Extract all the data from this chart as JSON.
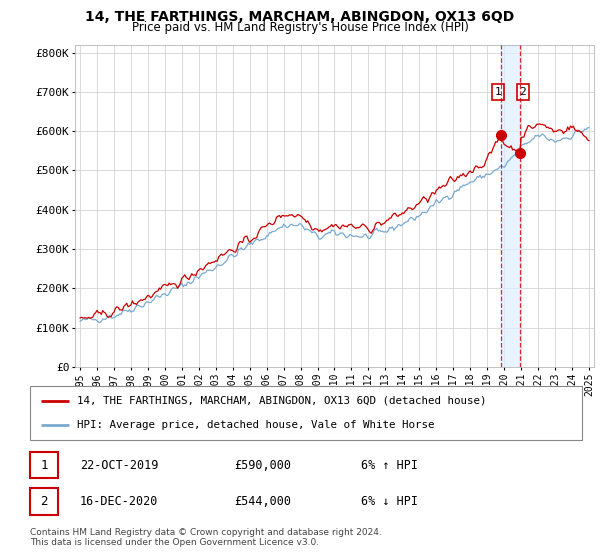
{
  "title": "14, THE FARTHINGS, MARCHAM, ABINGDON, OX13 6QD",
  "subtitle": "Price paid vs. HM Land Registry's House Price Index (HPI)",
  "legend_line1": "14, THE FARTHINGS, MARCHAM, ABINGDON, OX13 6QD (detached house)",
  "legend_line2": "HPI: Average price, detached house, Vale of White Horse",
  "footnote": "Contains HM Land Registry data © Crown copyright and database right 2024.\nThis data is licensed under the Open Government Licence v3.0.",
  "annotation1_date": "22-OCT-2019",
  "annotation1_price": "£590,000",
  "annotation1_hpi": "6% ↑ HPI",
  "annotation2_date": "16-DEC-2020",
  "annotation2_price": "£544,000",
  "annotation2_hpi": "6% ↓ HPI",
  "sale1_x": 2019.81,
  "sale1_y": 590000,
  "sale2_x": 2020.96,
  "sale2_y": 544000,
  "vline1_x": 2019.81,
  "vline2_x": 2020.96,
  "ylim": [
    0,
    820000
  ],
  "xlim": [
    1994.7,
    2025.3
  ],
  "yticks": [
    0,
    100000,
    200000,
    300000,
    400000,
    500000,
    600000,
    700000,
    800000
  ],
  "ytick_labels": [
    "£0",
    "£100K",
    "£200K",
    "£300K",
    "£400K",
    "£500K",
    "£600K",
    "£700K",
    "£800K"
  ],
  "xticks": [
    1995,
    1996,
    1997,
    1998,
    1999,
    2000,
    2001,
    2002,
    2003,
    2004,
    2005,
    2006,
    2007,
    2008,
    2009,
    2010,
    2011,
    2012,
    2013,
    2014,
    2015,
    2016,
    2017,
    2018,
    2019,
    2020,
    2021,
    2022,
    2023,
    2024,
    2025
  ],
  "price_paid_color": "#cc0000",
  "hpi_color": "#7aaad0",
  "shade_color": "#ddeeff",
  "dashed_line_color": "#cc0000",
  "background_color": "#ffffff",
  "grid_color": "#cccccc"
}
